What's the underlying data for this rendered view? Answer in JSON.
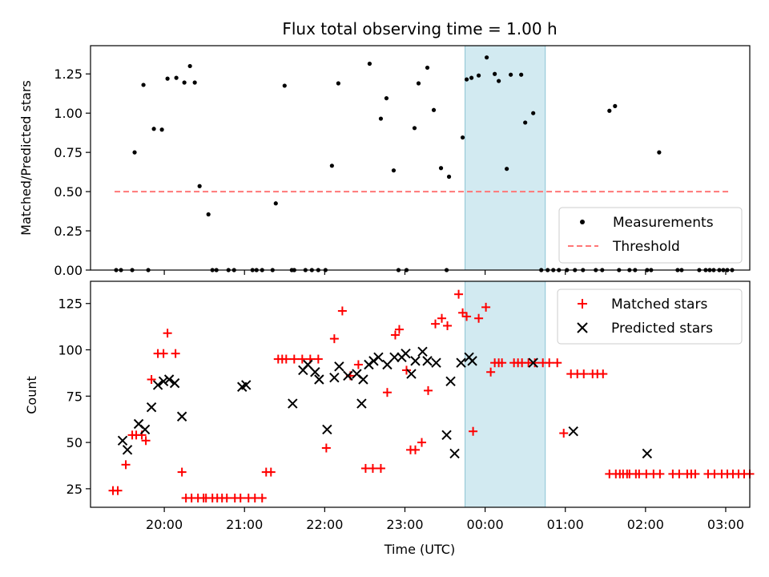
{
  "chart_data": [
    {
      "type": "scatter",
      "title": "Flux total observing time = 1.00 h",
      "xlabel": "",
      "ylabel": "Matched/Predicted stars",
      "xlim": [
        -0.42,
        7.8
      ],
      "ylim": [
        0,
        1.43
      ],
      "xticks": [
        0.5,
        1.5,
        2.5,
        3.5,
        4.5,
        5.5,
        6.5,
        7.5
      ],
      "xtick_labels": [
        "20:00",
        "21:00",
        "22:00",
        "23:00",
        "00:00",
        "01:00",
        "02:00",
        "03:00"
      ],
      "xtick_labels_shown": false,
      "yticks": [
        0,
        0.25,
        0.5,
        0.75,
        1.0,
        1.25
      ],
      "ytick_labels": [
        "0.00",
        "0.25",
        "0.50",
        "0.75",
        "1.00",
        "1.25"
      ],
      "highlight_span": [
        4.25,
        5.25
      ],
      "highlight_color": "#add8e6",
      "legend_position": "lower-right",
      "series": [
        {
          "name": "Measurements",
          "kind": "points",
          "color": "#000000",
          "x": [
            -0.1,
            -0.04,
            0.1,
            0.13,
            0.24,
            0.3,
            0.37,
            0.47,
            0.54,
            0.65,
            0.75,
            0.82,
            0.88,
            0.94,
            1.05,
            1.1,
            1.15,
            1.3,
            1.37,
            1.6,
            1.65,
            1.72,
            1.85,
            1.89,
            2.0,
            2.09,
            2.12,
            2.26,
            2.34,
            2.42,
            2.51,
            2.59,
            2.67,
            3.06,
            3.2,
            3.27,
            3.36,
            3.42,
            3.52,
            3.62,
            3.67,
            3.78,
            3.86,
            3.95,
            4.02,
            4.05,
            4.22,
            4.27,
            4.33,
            4.42,
            4.52,
            4.62,
            4.67,
            4.77,
            4.82,
            4.95,
            5.0,
            5.1,
            5.2,
            5.28,
            5.35,
            5.42,
            5.52,
            5.62,
            5.72,
            5.88,
            5.96,
            6.05,
            6.12,
            6.17,
            6.3,
            6.37,
            6.52,
            6.57,
            6.67,
            6.9,
            6.95,
            7.17,
            7.25,
            7.3,
            7.35,
            7.42,
            7.47,
            7.52,
            7.58
          ],
          "y": [
            0,
            0,
            0,
            0.75,
            1.18,
            0,
            0.9,
            0.895,
            1.22,
            1.225,
            1.195,
            1.3,
            1.195,
            0.535,
            0.355,
            0,
            0,
            0,
            0,
            0,
            0,
            0,
            0,
            0.425,
            1.175,
            0,
            0,
            0,
            0,
            0,
            0,
            0.665,
            1.19,
            1.315,
            0.965,
            1.095,
            0.635,
            0,
            0,
            0.905,
            1.19,
            1.29,
            1.02,
            0.65,
            0,
            0.595,
            0.845,
            1.215,
            1.225,
            1.24,
            1.355,
            1.25,
            1.205,
            0.645,
            1.245,
            1.245,
            0.94,
            1.0,
            0,
            0,
            0,
            0,
            0,
            0,
            0,
            0,
            0,
            1.015,
            1.045,
            0,
            0,
            0,
            0,
            0,
            0.75,
            0,
            0,
            0,
            0,
            0,
            0,
            0,
            0,
            0,
            0
          ]
        },
        {
          "name": "Threshold",
          "kind": "dashed-line",
          "color": "#ff7777",
          "x": [
            -0.12,
            7.55
          ],
          "y": [
            0.5,
            0.5
          ]
        }
      ]
    },
    {
      "type": "scatter",
      "title": "",
      "xlabel": "Time (UTC)",
      "ylabel": "Count",
      "xlim": [
        -0.42,
        7.8
      ],
      "ylim": [
        15,
        137
      ],
      "xticks": [
        0.5,
        1.5,
        2.5,
        3.5,
        4.5,
        5.5,
        6.5,
        7.5
      ],
      "xtick_labels": [
        "20:00",
        "21:00",
        "22:00",
        "23:00",
        "00:00",
        "01:00",
        "02:00",
        "03:00"
      ],
      "xtick_labels_shown": true,
      "yticks": [
        25,
        50,
        75,
        100,
        125
      ],
      "ytick_labels": [
        "25",
        "50",
        "75",
        "100",
        "125"
      ],
      "highlight_span": [
        4.25,
        5.25
      ],
      "highlight_color": "#add8e6",
      "legend_position": "upper-right",
      "series": [
        {
          "name": "Matched stars",
          "kind": "plus",
          "color": "#ff0000",
          "x": [
            -0.14,
            -0.08,
            0.02,
            0.1,
            0.15,
            0.22,
            0.27,
            0.34,
            0.42,
            0.49,
            0.54,
            0.64,
            0.72,
            0.77,
            0.84,
            0.92,
            0.99,
            1.02,
            1.1,
            1.16,
            1.22,
            1.28,
            1.38,
            1.45,
            1.55,
            1.63,
            1.72,
            1.77,
            1.83,
            1.92,
            1.97,
            2.02,
            2.12,
            2.22,
            2.32,
            2.42,
            2.52,
            2.62,
            2.72,
            2.82,
            2.92,
            3.01,
            3.1,
            3.2,
            3.28,
            3.38,
            3.43,
            3.52,
            3.57,
            3.63,
            3.71,
            3.79,
            3.88,
            3.96,
            4.03,
            4.17,
            4.22,
            4.27,
            4.35,
            4.42,
            4.51,
            4.57,
            4.62,
            4.67,
            4.71,
            4.86,
            4.91,
            4.96,
            5.04,
            5.12,
            5.22,
            5.3,
            5.4,
            5.48,
            5.57,
            5.65,
            5.73,
            5.84,
            5.9,
            5.97,
            6.05,
            6.13,
            6.18,
            6.22,
            6.27,
            6.3,
            6.38,
            6.42,
            6.51,
            6.6,
            6.68,
            6.84,
            6.92,
            7.02,
            7.07,
            7.12,
            7.28,
            7.36,
            7.45,
            7.52,
            7.59,
            7.66,
            7.73,
            7.8
          ],
          "y": [
            24,
            24,
            38,
            54,
            54,
            54,
            51,
            84,
            98,
            98,
            109,
            98,
            34,
            20,
            20,
            20,
            20,
            20,
            20,
            20,
            20,
            20,
            20,
            20,
            20,
            20,
            20,
            34,
            34,
            95,
            95,
            95,
            95,
            95,
            95,
            95,
            47,
            106,
            121,
            86,
            92,
            36,
            36,
            36,
            77,
            108,
            111,
            89,
            46,
            46,
            50,
            78,
            114,
            117,
            113,
            130,
            120,
            118,
            56,
            117,
            123,
            88,
            93,
            93,
            93,
            93,
            93,
            93,
            93,
            93,
            93,
            93,
            93,
            55,
            87,
            87,
            87,
            87,
            87,
            87,
            33,
            33,
            33,
            33,
            33,
            33,
            33,
            33,
            33,
            33,
            33,
            33,
            33,
            33,
            33,
            33,
            33,
            33,
            33,
            33,
            33,
            33,
            33,
            33
          ],
          "x_display": [
            -0.14,
            -0.08,
            0.02,
            0.1,
            0.15,
            0.22,
            0.27,
            0.34,
            0.42,
            0.49,
            0.54,
            0.64,
            0.72,
            0.77,
            0.84,
            0.92,
            0.99,
            1.02,
            1.1,
            1.16,
            1.22,
            1.28,
            1.38,
            1.45,
            1.55,
            1.63,
            1.72,
            1.77,
            1.83,
            1.92,
            1.97,
            2.02,
            2.12,
            2.22,
            2.32,
            2.42,
            2.52,
            2.62,
            2.72,
            2.82,
            2.92,
            3.01,
            3.1,
            3.2,
            3.28,
            3.38,
            3.43,
            3.52,
            3.57,
            3.63,
            3.71,
            3.79,
            3.88,
            3.96,
            4.03,
            4.17,
            4.22,
            4.27,
            4.35,
            4.42,
            4.51,
            4.57,
            4.62,
            4.67,
            4.71,
            4.86,
            4.91,
            4.96,
            5.04,
            5.12,
            5.22,
            5.3,
            5.4,
            5.48,
            5.57,
            5.65,
            5.73,
            5.84,
            5.9,
            5.97,
            6.05,
            6.13,
            6.18,
            6.22,
            6.27,
            6.3,
            6.38,
            6.42,
            6.51,
            6.6,
            6.68,
            6.84,
            6.92,
            7.02,
            7.07,
            7.12,
            7.28,
            7.36,
            7.45,
            7.52,
            7.59,
            7.66,
            7.73,
            7.8
          ]
        },
        {
          "name": "Predicted stars",
          "kind": "x",
          "color": "#000000",
          "x": [
            -0.02,
            0.04,
            0.18,
            0.26,
            0.34,
            0.42,
            0.49,
            0.56,
            0.63,
            0.72,
            1.47,
            1.52,
            2.1,
            2.23,
            2.29,
            2.38,
            2.43,
            2.53,
            2.62,
            2.68,
            2.79,
            2.9,
            2.96,
            2.98,
            3.05,
            3.11,
            3.17,
            3.28,
            3.37,
            3.46,
            3.51,
            3.58,
            3.63,
            3.72,
            3.78,
            3.89,
            4.02,
            4.07,
            4.12,
            4.2,
            4.3,
            4.34,
            5.1,
            5.6,
            6.52
          ],
          "y": [
            51,
            46,
            60,
            57,
            69,
            81,
            83,
            84,
            82,
            64,
            80,
            81,
            71,
            89,
            92,
            88,
            84,
            57,
            85,
            91,
            86,
            87,
            71,
            84,
            92,
            94,
            96,
            92,
            96,
            96,
            98,
            87,
            94,
            99,
            94,
            93,
            54,
            83,
            44,
            93,
            96,
            94,
            93,
            56,
            44
          ]
        }
      ]
    }
  ],
  "labels": {
    "top_title": "Flux total observing time = 1.00 h",
    "top_ylabel": "Matched/Predicted stars",
    "bottom_ylabel": "Count",
    "bottom_xlabel": "Time (UTC)",
    "legend_top": [
      "Measurements",
      "Threshold"
    ],
    "legend_bottom": [
      "Matched stars",
      "Predicted stars"
    ]
  }
}
